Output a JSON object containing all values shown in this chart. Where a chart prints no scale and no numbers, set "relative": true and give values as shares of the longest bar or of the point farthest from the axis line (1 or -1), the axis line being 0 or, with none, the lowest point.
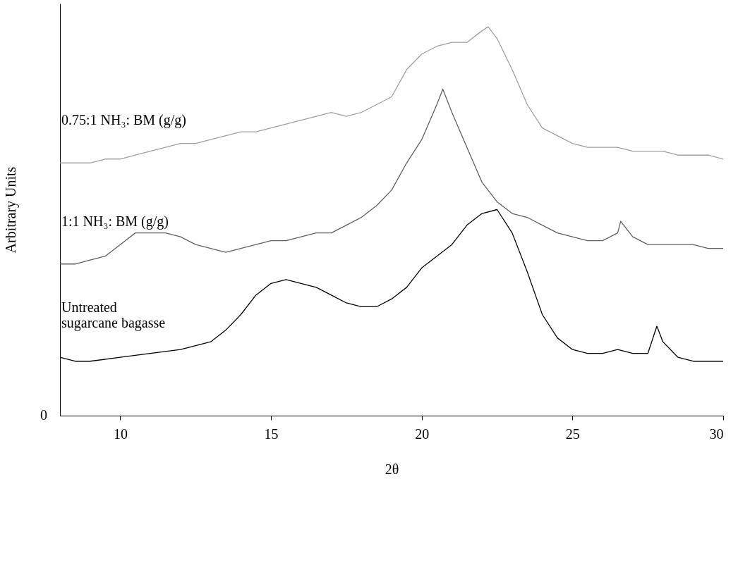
{
  "chart_data": {
    "type": "line",
    "relative": true,
    "xlabel": "2θ",
    "ylabel": "Arbitrary Units",
    "annotations": [
      "0"
    ],
    "xlim": [
      8,
      30
    ],
    "xticks": [
      10,
      15,
      20,
      25,
      30
    ],
    "marker": "none",
    "line_style": "solid",
    "series": [
      {
        "name": "0.75:1 NH₃: BM (g/g)",
        "color": "#a0a0a0",
        "x": [
          8,
          8.5,
          9,
          9.5,
          10,
          10.5,
          11,
          11.5,
          12,
          12.5,
          13,
          13.5,
          14,
          14.5,
          15,
          15.5,
          16,
          16.5,
          17,
          17.5,
          18,
          18.5,
          19,
          19.5,
          20,
          20.5,
          21,
          21.5,
          22,
          22.2,
          22.5,
          23,
          23.5,
          24,
          24.5,
          25,
          25.5,
          26,
          26.5,
          27,
          27.5,
          28,
          28.5,
          29,
          29.5,
          30
        ],
        "values": [
          0.65,
          0.65,
          0.65,
          0.66,
          0.66,
          0.67,
          0.68,
          0.69,
          0.7,
          0.7,
          0.71,
          0.72,
          0.73,
          0.73,
          0.74,
          0.75,
          0.76,
          0.77,
          0.78,
          0.77,
          0.78,
          0.8,
          0.82,
          0.89,
          0.93,
          0.95,
          0.96,
          0.96,
          0.99,
          1.0,
          0.97,
          0.89,
          0.8,
          0.74,
          0.72,
          0.7,
          0.69,
          0.69,
          0.69,
          0.68,
          0.68,
          0.68,
          0.67,
          0.67,
          0.67,
          0.66
        ]
      },
      {
        "name": "1:1 NH₃: BM (g/g)",
        "color": "#606060",
        "x": [
          8,
          8.5,
          9,
          9.5,
          10,
          10.5,
          11,
          11.5,
          12,
          12.5,
          13,
          13.5,
          14,
          14.5,
          15,
          15.5,
          16,
          16.5,
          17,
          17.5,
          18,
          18.5,
          19,
          19.5,
          20,
          20.5,
          20.7,
          21,
          21.5,
          22,
          22.5,
          23,
          23.5,
          24,
          24.5,
          25,
          25.5,
          26,
          26.5,
          26.6,
          27,
          27.5,
          28,
          28.5,
          29,
          29.5,
          30
        ],
        "values": [
          0.39,
          0.39,
          0.4,
          0.41,
          0.44,
          0.47,
          0.47,
          0.47,
          0.46,
          0.44,
          0.43,
          0.42,
          0.43,
          0.44,
          0.45,
          0.45,
          0.46,
          0.47,
          0.47,
          0.49,
          0.51,
          0.54,
          0.58,
          0.65,
          0.71,
          0.8,
          0.84,
          0.78,
          0.69,
          0.6,
          0.55,
          0.52,
          0.51,
          0.49,
          0.47,
          0.46,
          0.45,
          0.45,
          0.47,
          0.5,
          0.46,
          0.44,
          0.44,
          0.44,
          0.44,
          0.43,
          0.43
        ]
      },
      {
        "name": "Untreated\nsugarcane bagasse",
        "color": "#000000",
        "x": [
          8,
          8.5,
          9,
          10,
          11,
          12,
          13,
          13.5,
          14,
          14.5,
          15,
          15.5,
          16,
          16.5,
          17,
          17.5,
          18,
          18.5,
          19,
          19.5,
          20,
          20.5,
          21,
          21.5,
          22,
          22.5,
          23,
          23.5,
          24,
          24.5,
          25,
          25.5,
          26,
          26.5,
          27,
          27.5,
          27.8,
          28,
          28.5,
          29,
          29.5,
          30
        ],
        "values": [
          0.15,
          0.14,
          0.14,
          0.15,
          0.16,
          0.17,
          0.19,
          0.22,
          0.26,
          0.31,
          0.34,
          0.35,
          0.34,
          0.33,
          0.31,
          0.29,
          0.28,
          0.28,
          0.3,
          0.33,
          0.38,
          0.41,
          0.44,
          0.49,
          0.52,
          0.53,
          0.47,
          0.37,
          0.26,
          0.2,
          0.17,
          0.16,
          0.16,
          0.17,
          0.16,
          0.16,
          0.23,
          0.19,
          0.15,
          0.14,
          0.14,
          0.14
        ]
      }
    ]
  }
}
